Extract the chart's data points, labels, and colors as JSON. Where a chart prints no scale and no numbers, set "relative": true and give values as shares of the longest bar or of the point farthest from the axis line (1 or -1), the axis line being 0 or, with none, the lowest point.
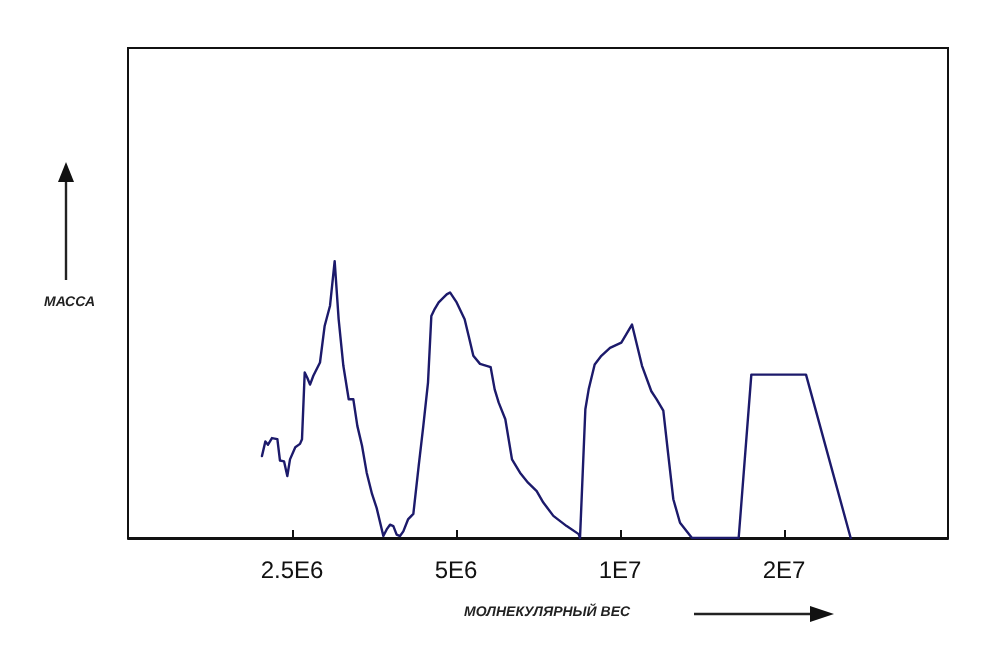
{
  "chart_data": {
    "type": "line",
    "xlabel": "МОЛНЕКУЛЯРНЫЙ ВЕС",
    "ylabel": "МАССА",
    "relative": true,
    "log": "x",
    "xlim": [
      1250000,
      40000000
    ],
    "xticks": [
      {
        "value": 2500000,
        "label": "2.5E6"
      },
      {
        "value": 5000000,
        "label": "5E6"
      },
      {
        "value": 10000000,
        "label": "1E7"
      },
      {
        "value": 20000000,
        "label": "2E7"
      }
    ],
    "grid": false,
    "marker": "none",
    "line_style": "solid",
    "series": [
      {
        "color": "#1c1a6b",
        "x": [
          2202000,
          2234000,
          2259000,
          2297000,
          2350000,
          2376000,
          2417000,
          2451000,
          2479000,
          2535000,
          2586000,
          2608000,
          2638000,
          2668000,
          2698000,
          2736000,
          2814000,
          2870000,
          2936000,
          2994000,
          3045000,
          3106000,
          3177000,
          3240000,
          3295000,
          3361000,
          3428000,
          3506000,
          3576000,
          3678000,
          3730000,
          3783000,
          3837000,
          3891000,
          3946000,
          4002000,
          4082000,
          4175000,
          4270000,
          4355000,
          4442000,
          4505000,
          4569000,
          4647000,
          4807000,
          4875000,
          5014000,
          5186000,
          5275000,
          5380000,
          5534000,
          5789000,
          5888000,
          5989000,
          6159000,
          6335000,
          6553000,
          6779000,
          7032000,
          7232000,
          7545000,
          7982000,
          8398000,
          8445000,
          8638000,
          8760000,
          8985000,
          9242000,
          9587000,
          10056000,
          10520000,
          10975000,
          11416000,
          11676000,
          12009000,
          12250000,
          12528000,
          12887000,
          13557000,
          16513000,
          17421000,
          21950000,
          26511000
        ],
        "values": [
          0.296,
          0.349,
          0.337,
          0.361,
          0.357,
          0.28,
          0.277,
          0.224,
          0.284,
          0.328,
          0.34,
          0.357,
          0.598,
          0.578,
          0.554,
          0.586,
          0.634,
          0.766,
          0.839,
          1,
          0.79,
          0.622,
          0.501,
          0.501,
          0.405,
          0.333,
          0.236,
          0.159,
          0.108,
          0.007,
          0.031,
          0.048,
          0.043,
          0.012,
          0.007,
          0.024,
          0.067,
          0.087,
          0.26,
          0.405,
          0.561,
          0.802,
          0.827,
          0.851,
          0.88,
          0.887,
          0.851,
          0.79,
          0.73,
          0.658,
          0.629,
          0.617,
          0.537,
          0.489,
          0.429,
          0.284,
          0.236,
          0.2,
          0.169,
          0.128,
          0.08,
          0.043,
          0.014,
          0,
          0.465,
          0.537,
          0.627,
          0.658,
          0.687,
          0.706,
          0.771,
          0.622,
          0.53,
          0.501,
          0.46,
          0.308,
          0.14,
          0.055,
          0,
          0,
          0.59,
          0.59,
          0
        ]
      }
    ]
  }
}
